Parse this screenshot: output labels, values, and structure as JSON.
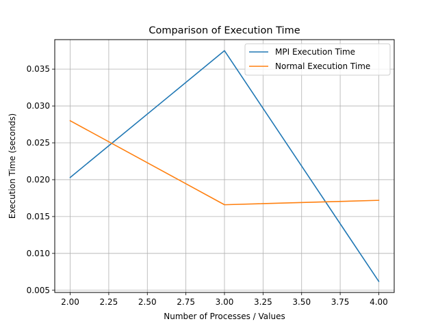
{
  "chart_data": {
    "type": "line",
    "title": "Comparison of Execution Time",
    "xlabel": "Number of Processes / Values",
    "ylabel": "Execution Time (seconds)",
    "x": [
      2,
      3,
      4
    ],
    "xlim": [
      1.9,
      4.1
    ],
    "ylim": [
      0.0047,
      0.039
    ],
    "xticks": [
      2.0,
      2.25,
      2.5,
      2.75,
      3.0,
      3.25,
      3.5,
      3.75,
      4.0
    ],
    "xtick_labels": [
      "2.00",
      "2.25",
      "2.50",
      "2.75",
      "3.00",
      "3.25",
      "3.50",
      "3.75",
      "4.00"
    ],
    "yticks": [
      0.005,
      0.01,
      0.015,
      0.02,
      0.025,
      0.03,
      0.035
    ],
    "ytick_labels": [
      "0.005",
      "0.010",
      "0.015",
      "0.020",
      "0.025",
      "0.030",
      "0.035"
    ],
    "grid": true,
    "legend_position": "top-right",
    "series": [
      {
        "name": "MPI Execution Time",
        "values": [
          0.0203,
          0.0375,
          0.0062
        ],
        "color": "#1f77b4"
      },
      {
        "name": "Normal Execution Time",
        "values": [
          0.028,
          0.0166,
          0.0172
        ],
        "color": "#ff7f0e"
      }
    ]
  }
}
